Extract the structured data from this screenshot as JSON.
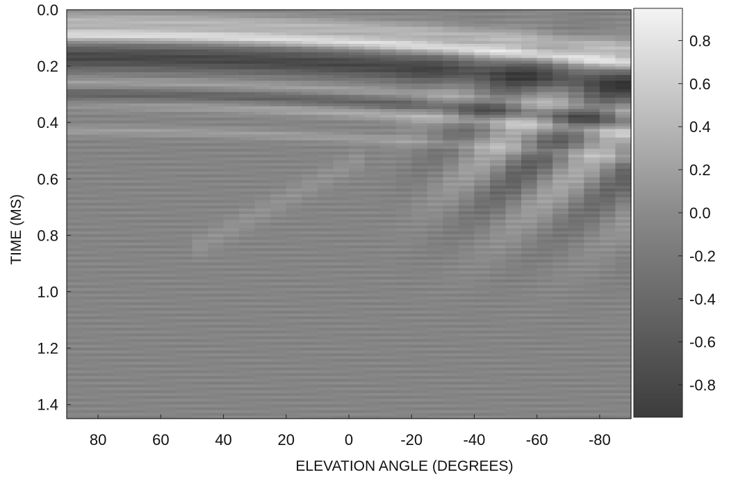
{
  "chart_data": {
    "type": "heatmap",
    "title": "",
    "xlabel": "ELEVATION ANGLE (DEGREES)",
    "ylabel": "TIME (MS)",
    "x_ticks": [
      "80",
      "60",
      "40",
      "20",
      "0",
      "-20",
      "-40",
      "-60",
      "-80"
    ],
    "x_tick_values": [
      80,
      60,
      40,
      20,
      0,
      -20,
      -40,
      -60,
      -80
    ],
    "y_ticks": [
      "0.0",
      "0.2",
      "0.4",
      "0.6",
      "0.8",
      "1.0",
      "1.2",
      "1.4"
    ],
    "y_tick_values": [
      0.0,
      0.2,
      0.4,
      0.6,
      0.8,
      1.0,
      1.2,
      1.4
    ],
    "xlim": [
      90,
      -90
    ],
    "ylim": [
      0.0,
      1.45
    ],
    "colorbar": {
      "ticks": [
        "0.8",
        "0.6",
        "0.4",
        "0.2",
        "0.0",
        "-0.2",
        "-0.4",
        "-0.6",
        "-0.8"
      ],
      "tick_values": [
        0.8,
        0.6,
        0.4,
        0.2,
        0.0,
        -0.2,
        -0.4,
        -0.6,
        -0.8
      ],
      "range": [
        -0.95,
        0.95
      ],
      "colormap": "grayscale"
    },
    "grid": false
  }
}
